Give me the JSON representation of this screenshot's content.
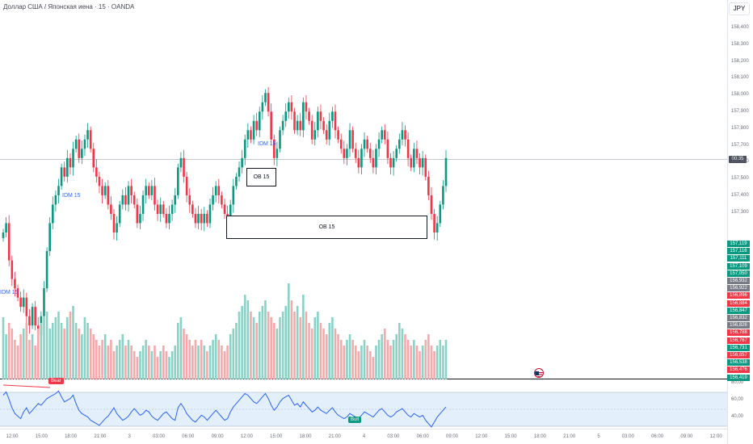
{
  "header": {
    "title": "Доллар США / Японская иена · 15 · OANDA",
    "currency": "JPY",
    "current_price": "00:35"
  },
  "price_axis": [
    "158,400",
    "158,300",
    "158,200",
    "158,100",
    "158,000",
    "157,900",
    "157,800",
    "157,700",
    "157,600",
    "157,500",
    "157,400",
    "157,300"
  ],
  "price_labels": [
    {
      "text": "157,119",
      "color": "#089981"
    },
    {
      "text": "157,116",
      "color": "#089981"
    },
    {
      "text": "157,111",
      "color": "#089981"
    },
    {
      "text": "157,109",
      "color": "#089981"
    },
    {
      "text": "157,050",
      "color": "#089981"
    },
    {
      "text": "156,932",
      "color": "#787b86"
    },
    {
      "text": "156,922",
      "color": "#787b86"
    },
    {
      "text": "156,896",
      "color": "#f23645"
    },
    {
      "text": "156,884",
      "color": "#f23645"
    },
    {
      "text": "156,847",
      "color": "#089981"
    },
    {
      "text": "156,832",
      "color": "#787b86"
    },
    {
      "text": "156,826",
      "color": "#787b86"
    },
    {
      "text": "156,788",
      "color": "#f23645"
    },
    {
      "text": "156,767",
      "color": "#f23645"
    },
    {
      "text": "156,731",
      "color": "#089981"
    },
    {
      "text": "156,657",
      "color": "#f23645"
    },
    {
      "text": "156,538",
      "color": "#089981"
    },
    {
      "text": "156,476",
      "color": "#f23645"
    },
    {
      "text": "156,419",
      "color": "#089981"
    }
  ],
  "rsi_axis": [
    "80,00",
    "60,00",
    "40,00"
  ],
  "time_axis": [
    "12:00",
    "15:00",
    "18:00",
    "21:00",
    "3",
    "03:00",
    "06:00",
    "09:00",
    "12:00",
    "15:00",
    "18:00",
    "21:00",
    "4",
    "03:00",
    "06:00",
    "09:00",
    "12:00",
    "15:00",
    "18:00",
    "21:00",
    "5",
    "03:00",
    "06:00",
    "09:00",
    "12:00"
  ],
  "annotations": {
    "idm1": "IDM 15",
    "idm2": "IDM 15",
    "idm3": "IDM 15",
    "ob1": "OB 15",
    "ob2": "OB 15",
    "bear": "Bear",
    "bull": "Bull"
  },
  "colors": {
    "up": "#089981",
    "down": "#f23645",
    "vol_up": "#8ad2c6",
    "vol_down": "#f7a8a9",
    "rsi": "#2962ff"
  },
  "chart_data": {
    "type": "candlestick",
    "title": "Доллар США / Японская иена · 15 · OANDA",
    "y_unit": "JPY",
    "ylim": [
      156.41,
      158.45
    ],
    "closes": [
      157.2,
      157.25,
      157.05,
      156.95,
      156.9,
      156.85,
      156.8,
      156.85,
      156.75,
      156.7,
      156.8,
      156.7,
      156.65,
      156.75,
      156.9,
      157.1,
      157.25,
      157.35,
      157.4,
      157.45,
      157.55,
      157.5,
      157.6,
      157.55,
      157.65,
      157.7,
      157.6,
      157.65,
      157.7,
      157.75,
      157.65,
      157.55,
      157.5,
      157.45,
      157.4,
      157.45,
      157.35,
      157.3,
      157.2,
      157.25,
      157.35,
      157.4,
      157.35,
      157.45,
      157.4,
      157.35,
      157.25,
      157.3,
      157.4,
      157.45,
      157.4,
      157.45,
      157.35,
      157.3,
      157.35,
      157.3,
      157.25,
      157.3,
      157.35,
      157.4,
      157.55,
      157.6,
      157.5,
      157.4,
      157.35,
      157.3,
      157.25,
      157.3,
      157.25,
      157.3,
      157.25,
      157.35,
      157.4,
      157.45,
      157.4,
      157.35,
      157.3,
      157.25,
      157.35,
      157.45,
      157.5,
      157.55,
      157.6,
      157.7,
      157.75,
      157.7,
      157.8,
      157.75,
      157.85,
      157.9,
      157.95,
      157.85,
      157.7,
      157.6,
      157.65,
      157.75,
      157.8,
      157.85,
      157.9,
      157.85,
      157.75,
      157.8,
      157.75,
      157.9,
      157.85,
      157.8,
      157.7,
      157.75,
      157.85,
      157.8,
      157.75,
      157.7,
      157.8,
      157.85,
      157.75,
      157.7,
      157.65,
      157.6,
      157.65,
      157.75,
      157.65,
      157.6,
      157.55,
      157.65,
      157.7,
      157.65,
      157.6,
      157.55,
      157.65,
      157.7,
      157.75,
      157.7,
      157.6,
      157.55,
      157.6,
      157.65,
      157.7,
      157.75,
      157.7,
      157.6,
      157.55,
      157.65,
      157.6,
      157.55,
      157.6,
      157.5,
      157.4,
      157.3,
      157.2,
      157.25,
      157.35,
      157.45,
      157.6
    ],
    "volumes": [
      0.55,
      0.4,
      0.5,
      0.45,
      0.35,
      0.3,
      0.4,
      0.45,
      0.5,
      0.35,
      0.4,
      0.3,
      0.45,
      0.5,
      0.55,
      0.6,
      0.45,
      0.5,
      0.55,
      0.6,
      0.5,
      0.45,
      0.55,
      0.6,
      0.65,
      0.5,
      0.45,
      0.4,
      0.55,
      0.5,
      0.45,
      0.4,
      0.35,
      0.3,
      0.35,
      0.4,
      0.3,
      0.35,
      0.25,
      0.3,
      0.35,
      0.4,
      0.3,
      0.35,
      0.3,
      0.25,
      0.2,
      0.25,
      0.3,
      0.35,
      0.3,
      0.25,
      0.3,
      0.2,
      0.25,
      0.3,
      0.25,
      0.2,
      0.25,
      0.3,
      0.5,
      0.55,
      0.45,
      0.4,
      0.35,
      0.3,
      0.35,
      0.3,
      0.35,
      0.3,
      0.25,
      0.3,
      0.35,
      0.4,
      0.35,
      0.3,
      0.25,
      0.3,
      0.4,
      0.45,
      0.5,
      0.6,
      0.65,
      0.75,
      0.7,
      0.6,
      0.55,
      0.5,
      0.6,
      0.65,
      0.7,
      0.6,
      0.55,
      0.5,
      0.45,
      0.55,
      0.6,
      0.65,
      0.85,
      0.7,
      0.6,
      0.65,
      0.55,
      0.75,
      0.6,
      0.5,
      0.45,
      0.55,
      0.6,
      0.5,
      0.45,
      0.4,
      0.5,
      0.55,
      0.45,
      0.4,
      0.35,
      0.3,
      0.35,
      0.4,
      0.35,
      0.3,
      0.25,
      0.3,
      0.35,
      0.3,
      0.25,
      0.2,
      0.3,
      0.35,
      0.4,
      0.45,
      0.35,
      0.3,
      0.35,
      0.4,
      0.5,
      0.45,
      0.4,
      0.35,
      0.3,
      0.35,
      0.3,
      0.25,
      0.3,
      0.35,
      0.4,
      0.3,
      0.25,
      0.3,
      0.35,
      0.3,
      0.35
    ],
    "rsi": [
      70,
      74,
      65,
      55,
      48,
      45,
      42,
      50,
      55,
      48,
      52,
      56,
      60,
      58,
      62,
      66,
      68,
      70,
      72,
      75,
      68,
      62,
      64,
      66,
      70,
      60,
      52,
      48,
      46,
      44,
      40,
      38,
      36,
      34,
      38,
      42,
      45,
      50,
      55,
      48,
      44,
      40,
      42,
      45,
      50,
      54,
      50,
      46,
      48,
      52,
      50,
      45,
      42,
      40,
      44,
      48,
      50,
      46,
      42,
      40,
      55,
      60,
      55,
      48,
      44,
      40,
      38,
      42,
      46,
      44,
      40,
      44,
      48,
      52,
      48,
      44,
      40,
      42,
      50,
      56,
      60,
      64,
      68,
      72,
      70,
      66,
      62,
      60,
      64,
      68,
      72,
      66,
      58,
      52,
      56,
      62,
      66,
      68,
      70,
      64,
      58,
      60,
      56,
      62,
      58,
      54,
      50,
      52,
      56,
      52,
      50,
      48,
      52,
      55,
      50,
      46,
      44,
      42,
      44,
      48,
      46,
      44,
      42,
      46,
      50,
      48,
      46,
      44,
      48,
      52,
      54,
      50,
      46,
      44,
      46,
      50,
      52,
      54,
      50,
      46,
      44,
      48,
      46,
      44,
      46,
      40,
      36,
      32,
      38,
      44,
      48,
      52,
      56
    ],
    "rsi_ylim": [
      30,
      85
    ]
  }
}
